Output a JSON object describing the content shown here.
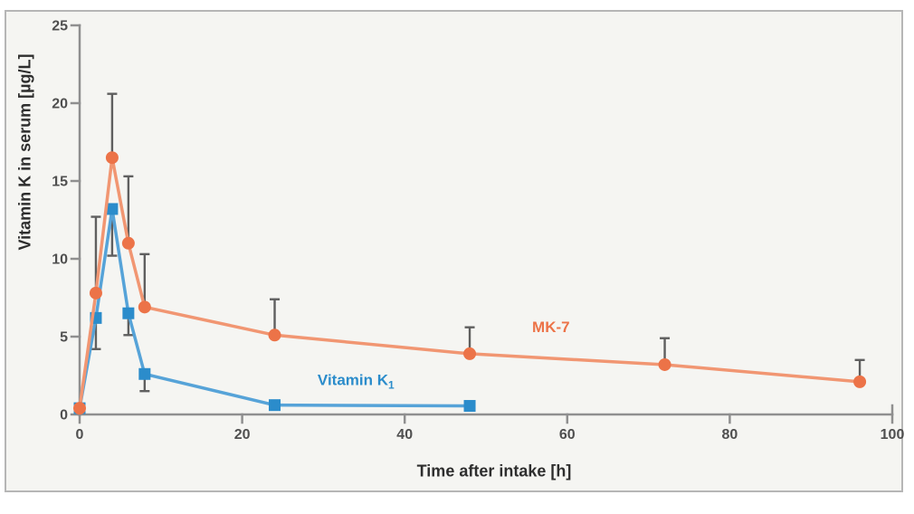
{
  "chart_data": {
    "type": "line",
    "title": "",
    "xlabel": "Time after intake [h]",
    "ylabel": "Vitamin K in serum [µg/L]",
    "xlim": [
      0,
      100
    ],
    "ylim": [
      0,
      25
    ],
    "x_ticks": [
      0,
      20,
      40,
      60,
      80,
      100
    ],
    "y_ticks": [
      0,
      5,
      10,
      15,
      20,
      25
    ],
    "grid": false,
    "legend_position": "inline-labels-on-plot",
    "error_bars": "one-sided (MK-7 upward, Vitamin K1 downward), T-caps, dark gray",
    "series": [
      {
        "name": "Vitamin K1",
        "label_main": "Vitamin K",
        "label_sub": "1",
        "marker": "square",
        "marker_color": "#2b8ccb",
        "line_color": "#56a3d8",
        "x": [
          0,
          2,
          4,
          6,
          8,
          24,
          48
        ],
        "y": [
          0.4,
          6.2,
          13.2,
          6.5,
          2.6,
          0.6,
          0.55
        ],
        "error_plus": [
          0,
          0,
          0,
          0,
          0,
          0,
          0
        ],
        "error_minus": [
          0,
          2.0,
          3.0,
          1.4,
          1.1,
          0,
          0
        ],
        "label_at": [
          34,
          1.9
        ]
      },
      {
        "name": "MK-7",
        "label_main": "MK-7",
        "label_sub": "",
        "marker": "circle",
        "marker_color": "#ec7348",
        "line_color": "#f19672",
        "x": [
          0,
          2,
          4,
          6,
          8,
          24,
          48,
          72,
          96
        ],
        "y": [
          0.4,
          7.8,
          16.5,
          11.0,
          6.9,
          5.1,
          3.9,
          3.2,
          2.1
        ],
        "error_plus": [
          0,
          4.9,
          4.1,
          4.3,
          3.4,
          2.3,
          1.7,
          1.7,
          1.4
        ],
        "error_minus": [
          0,
          0,
          0,
          0,
          0,
          0,
          0,
          0,
          0
        ],
        "label_at": [
          58,
          5.3
        ]
      }
    ],
    "colors": {
      "mk7": "#ec7348",
      "vitamin_k1": "#2b8ccb",
      "error_bar": "#5f5f5f",
      "axis": "#8f8f8f",
      "tick_text": "#4f4f4f",
      "axis_label_text": "#2e2e2e",
      "plot_background": "#f5f5f2",
      "frame_border": "#b6b6b6"
    }
  }
}
